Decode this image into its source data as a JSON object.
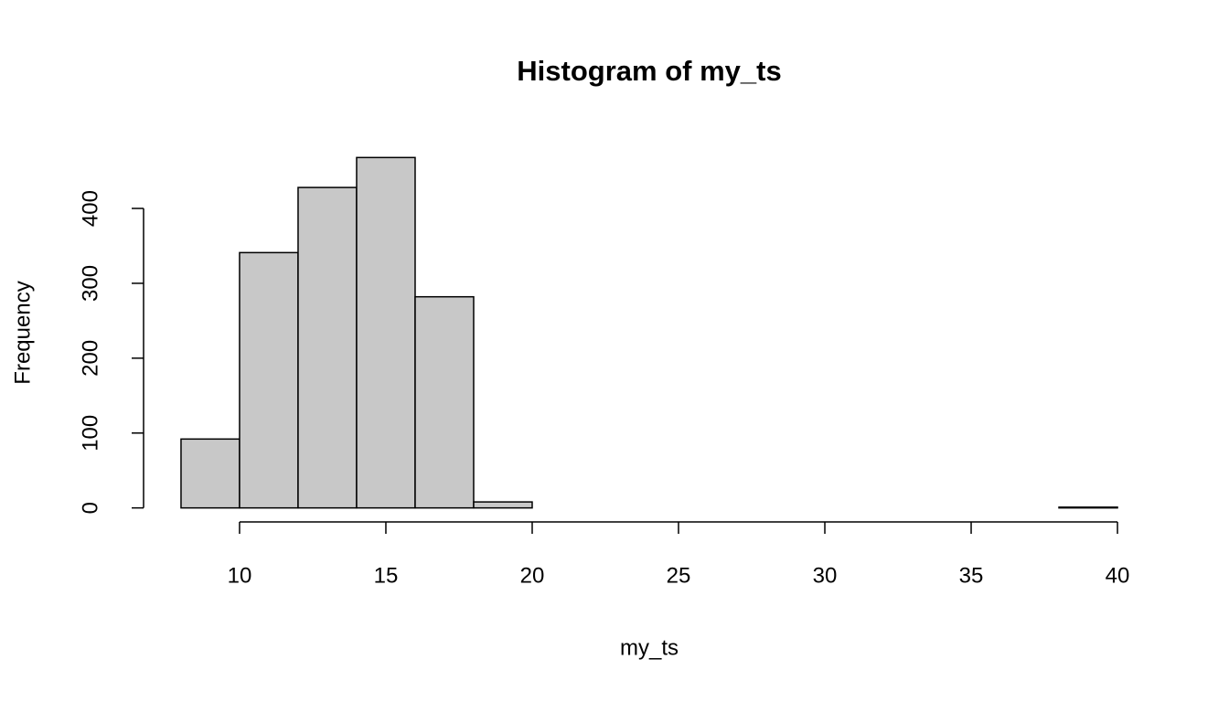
{
  "chart_data": {
    "type": "histogram",
    "title": "Histogram of my_ts",
    "x_label": "my_ts",
    "y_label": "Frequency",
    "bins": [
      8,
      10,
      12,
      14,
      16,
      18,
      20,
      22,
      24,
      26,
      28,
      30,
      32,
      34,
      36,
      38,
      40
    ],
    "values": [
      92,
      341,
      428,
      468,
      282,
      8,
      0,
      0,
      0,
      0,
      0,
      0,
      0,
      0,
      0,
      1
    ],
    "color": "#c8c8c8",
    "xlim": [
      6.72,
      41.28
    ],
    "xticks": [
      10,
      15,
      20,
      25,
      30,
      35,
      40
    ],
    "ylim": [
      -18.72,
      486.72
    ],
    "yticks": [
      0,
      100,
      200,
      300,
      400
    ]
  }
}
